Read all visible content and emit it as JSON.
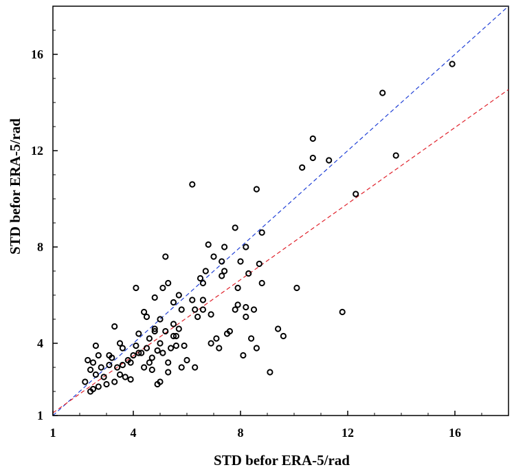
{
  "chart_data": {
    "type": "scatter",
    "xlabel": "STD befor ERA-5/rad",
    "ylabel": "STD befor ERA-5/rad",
    "xlim": [
      1,
      18
    ],
    "ylim": [
      1,
      18
    ],
    "x_ticks": [
      "1",
      "4",
      "8",
      "12",
      "16"
    ],
    "y_ticks": [
      "1",
      "4",
      "8",
      "12",
      "16"
    ],
    "x_tick_values": [
      1,
      4,
      8,
      12,
      16
    ],
    "y_tick_values": [
      1,
      4,
      8,
      12,
      16
    ],
    "grid": false,
    "marker": "open circle",
    "point_color": "#000000",
    "reference_lines": [
      {
        "color": "#1f3fd6",
        "style": "dashed",
        "slope": 1.0,
        "intercept": 0.0
      },
      {
        "color": "#e0202a",
        "style": "dashed",
        "slope": 0.79,
        "intercept": 0.32
      }
    ],
    "points": [
      [
        2.5,
        2.1
      ],
      [
        2.7,
        2.2
      ],
      [
        2.6,
        2.7
      ],
      [
        2.5,
        3.2
      ],
      [
        2.7,
        3.5
      ],
      [
        2.8,
        3.0
      ],
      [
        2.9,
        2.6
      ],
      [
        2.6,
        3.9
      ],
      [
        3.0,
        2.3
      ],
      [
        3.1,
        3.1
      ],
      [
        3.2,
        3.4
      ],
      [
        3.3,
        2.4
      ],
      [
        3.4,
        3.0
      ],
      [
        3.5,
        2.7
      ],
      [
        3.5,
        4.0
      ],
      [
        3.6,
        3.1
      ],
      [
        3.7,
        2.6
      ],
      [
        3.8,
        3.3
      ],
      [
        3.9,
        2.5
      ],
      [
        3.3,
        4.7
      ],
      [
        4.0,
        3.5
      ],
      [
        4.1,
        3.9
      ],
      [
        4.2,
        4.4
      ],
      [
        4.3,
        3.6
      ],
      [
        4.4,
        3.0
      ],
      [
        4.5,
        3.8
      ],
      [
        4.6,
        4.2
      ],
      [
        4.7,
        3.4
      ],
      [
        4.8,
        4.6
      ],
      [
        4.9,
        3.7
      ],
      [
        5.0,
        4.0
      ],
      [
        5.1,
        3.6
      ],
      [
        5.2,
        4.5
      ],
      [
        5.3,
        3.2
      ],
      [
        5.4,
        3.8
      ],
      [
        5.5,
        4.3
      ],
      [
        5.6,
        3.9
      ],
      [
        5.7,
        4.6
      ],
      [
        5.8,
        3.0
      ],
      [
        5.9,
        3.9
      ],
      [
        4.4,
        5.3
      ],
      [
        4.5,
        5.1
      ],
      [
        4.8,
        5.9
      ],
      [
        5.0,
        5.0
      ],
      [
        5.1,
        6.3
      ],
      [
        5.3,
        6.5
      ],
      [
        5.5,
        5.7
      ],
      [
        5.7,
        6.0
      ],
      [
        5.8,
        5.4
      ],
      [
        4.1,
        6.3
      ],
      [
        5.2,
        7.6
      ],
      [
        6.0,
        3.3
      ],
      [
        6.2,
        5.8
      ],
      [
        6.3,
        5.4
      ],
      [
        6.4,
        5.1
      ],
      [
        6.5,
        6.7
      ],
      [
        6.6,
        5.8
      ],
      [
        6.6,
        6.5
      ],
      [
        6.7,
        7.0
      ],
      [
        6.8,
        8.1
      ],
      [
        6.9,
        5.2
      ],
      [
        7.0,
        7.6
      ],
      [
        7.1,
        4.2
      ],
      [
        7.2,
        3.8
      ],
      [
        7.3,
        7.4
      ],
      [
        7.4,
        7.0
      ],
      [
        7.4,
        8.0
      ],
      [
        7.5,
        4.4
      ],
      [
        7.6,
        4.5
      ],
      [
        7.8,
        8.8
      ],
      [
        7.9,
        5.6
      ],
      [
        7.9,
        6.3
      ],
      [
        8.0,
        7.4
      ],
      [
        8.1,
        3.5
      ],
      [
        8.2,
        5.5
      ],
      [
        8.2,
        8.0
      ],
      [
        8.3,
        6.9
      ],
      [
        8.4,
        4.2
      ],
      [
        8.5,
        5.4
      ],
      [
        8.6,
        10.4
      ],
      [
        8.7,
        7.3
      ],
      [
        8.8,
        6.5
      ],
      [
        8.8,
        8.6
      ],
      [
        8.6,
        3.8
      ],
      [
        6.2,
        10.6
      ],
      [
        9.1,
        2.8
      ],
      [
        9.4,
        4.6
      ],
      [
        9.6,
        4.3
      ],
      [
        10.1,
        6.3
      ],
      [
        10.3,
        11.3
      ],
      [
        10.7,
        12.5
      ],
      [
        10.7,
        11.7
      ],
      [
        11.3,
        11.6
      ],
      [
        11.8,
        5.3
      ],
      [
        12.3,
        10.2
      ],
      [
        13.3,
        14.4
      ],
      [
        13.8,
        11.8
      ],
      [
        15.9,
        15.6
      ],
      [
        2.4,
        2.9
      ],
      [
        2.3,
        3.3
      ],
      [
        2.2,
        2.4
      ],
      [
        2.4,
        2.0
      ],
      [
        3.1,
        3.5
      ],
      [
        3.6,
        3.8
      ],
      [
        3.9,
        3.2
      ],
      [
        4.2,
        3.6
      ],
      [
        4.6,
        3.2
      ],
      [
        4.9,
        2.3
      ],
      [
        5.0,
        2.4
      ],
      [
        5.3,
        2.8
      ],
      [
        4.7,
        2.9
      ],
      [
        5.6,
        4.3
      ],
      [
        6.3,
        3.0
      ],
      [
        6.6,
        5.4
      ],
      [
        6.9,
        4.0
      ],
      [
        7.3,
        6.8
      ],
      [
        7.8,
        5.4
      ],
      [
        8.2,
        5.1
      ],
      [
        5.5,
        4.8
      ],
      [
        4.8,
        4.5
      ]
    ]
  }
}
